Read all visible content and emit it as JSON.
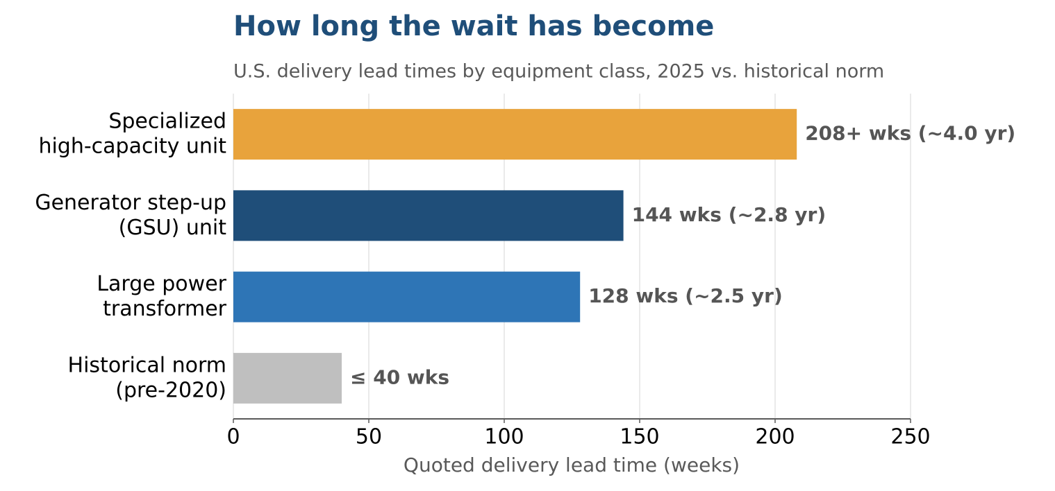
{
  "chart_data": {
    "type": "barh",
    "title": "How long the wait has become",
    "subtitle": "U.S. delivery lead times by equipment class, 2025 vs. historical norm",
    "x_label": "Quoted delivery lead time (weeks)",
    "categories": [
      [
        "Specialized",
        "high-capacity unit"
      ],
      [
        "Generator step-up",
        "(GSU) unit"
      ],
      [
        "Large power",
        "transformer"
      ],
      [
        "Historical norm",
        "(pre-2020)"
      ]
    ],
    "values": [
      208,
      144,
      128,
      40
    ],
    "value_labels": [
      "208+ wks  (~4.0 yr)",
      "144 wks  (~2.8 yr)",
      "128 wks  (~2.5 yr)",
      "≤ 40 wks"
    ],
    "colors": [
      "#e8a33c",
      "#1f4e79",
      "#2e75b6",
      "#bfbfbf"
    ],
    "xlim": [
      0,
      250
    ],
    "xticks": [
      0,
      50,
      100,
      150,
      200,
      250
    ],
    "grid": true
  }
}
